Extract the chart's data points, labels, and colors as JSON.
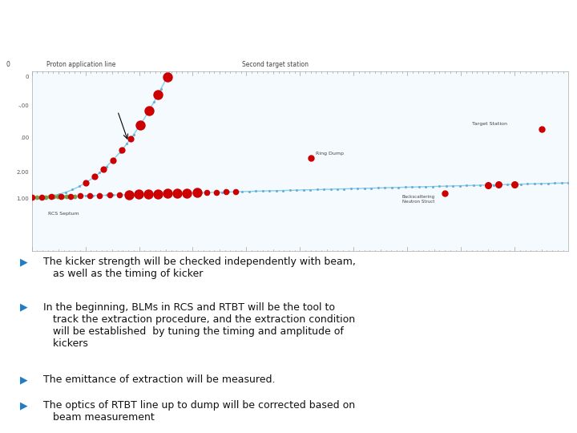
{
  "header_bg_color": "#5bb8d4",
  "body_bg_color": "#ffffff",
  "bullet_color": "#1f7ec7",
  "bullets": [
    "The kicker strength will be checked independently with beam,\n   as well as the timing of kicker",
    "In the beginning, BLMs in RCS and RTBT will be the tool to\n   track the extraction procedure, and the extraction condition\n   will be established  by tuning the timing and amplitude of\n   kickers",
    "The emittance of extraction will be measured.",
    "The optics of RTBT line up to dump will be corrected based on\n   beam measurement"
  ],
  "line_color": "#87ceeb",
  "red_dot_color": "#cc0000",
  "blue_dot_color": "#6baed6",
  "plot_bg_color": "#f5faff"
}
